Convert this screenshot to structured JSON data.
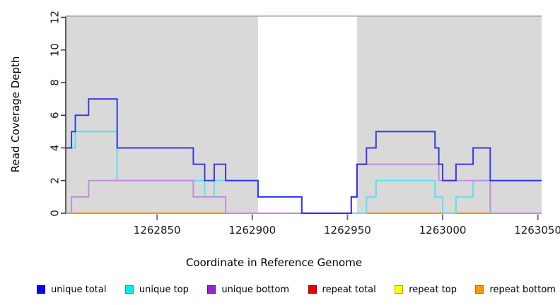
{
  "chart_data": {
    "type": "line",
    "subtype": "step-coverage-plot",
    "title": "",
    "xlabel": "Coordinate in Reference Genome",
    "ylabel": "Read Coverage Depth",
    "x_domain": [
      1262802,
      1263052
    ],
    "y_domain": [
      0,
      12
    ],
    "x_ticks": [
      1262850,
      1262900,
      1262950,
      1263000,
      1263050
    ],
    "y_ticks": [
      0,
      2,
      4,
      6,
      8,
      10,
      12
    ],
    "grid": false,
    "background_color": "#ffffff",
    "shaded_region_color": "#d9d9d9",
    "shaded_region_top_border_color": "#999999",
    "shaded_regions": [
      {
        "from": 1262802,
        "to": 1262903
      },
      {
        "from": 1262955,
        "to": 1263052
      }
    ],
    "legend_position": "bottom",
    "series": [
      {
        "name": "repeat total",
        "line_color": "#e00000",
        "legend_fill": "#ee0000",
        "legend_border": "#990000",
        "points": [
          [
            1262802,
            0
          ]
        ]
      },
      {
        "name": "repeat top",
        "line_color": "#ffe800",
        "legend_fill": "#ffff00",
        "legend_border": "#b8a800",
        "points": [
          [
            1262802,
            0
          ]
        ]
      },
      {
        "name": "repeat bottom",
        "line_color": "#ff9100",
        "legend_fill": "#ff9900",
        "legend_border": "#b86e00",
        "points": [
          [
            1262802,
            0
          ]
        ]
      },
      {
        "name": "unique top",
        "line_color": "#5fe0ec",
        "legend_fill": "#00eeee",
        "legend_border": "#00a8b4",
        "points": [
          [
            1262802,
            4
          ],
          [
            1262807,
            5
          ],
          [
            1262829,
            2
          ],
          [
            1262875,
            1
          ],
          [
            1262880,
            2
          ],
          [
            1262903,
            1
          ],
          [
            1262926,
            0
          ],
          [
            1262960,
            1
          ],
          [
            1262965,
            2
          ],
          [
            1262996,
            1
          ],
          [
            1263000,
            0
          ],
          [
            1263007,
            1
          ],
          [
            1263016,
            2
          ]
        ]
      },
      {
        "name": "unique bottom",
        "line_color": "#c18fd9",
        "legend_fill": "#9922cc",
        "legend_border": "#5e0c96",
        "points": [
          [
            1262802,
            0
          ],
          [
            1262805,
            1
          ],
          [
            1262814,
            2
          ],
          [
            1262869,
            1
          ],
          [
            1262886,
            0
          ],
          [
            1262952,
            1
          ],
          [
            1262955,
            3
          ],
          [
            1262998,
            2
          ],
          [
            1263025,
            0
          ]
        ]
      },
      {
        "name": "unique total",
        "line_color": "rgba(28,28,230,0.84)",
        "legend_fill": "#0000ee",
        "legend_border": "#000099",
        "points": [
          [
            1262802,
            4
          ],
          [
            1262805,
            5
          ],
          [
            1262807,
            6
          ],
          [
            1262814,
            7
          ],
          [
            1262829,
            4
          ],
          [
            1262869,
            3
          ],
          [
            1262875,
            2
          ],
          [
            1262880,
            3
          ],
          [
            1262886,
            2
          ],
          [
            1262903,
            1
          ],
          [
            1262926,
            0
          ],
          [
            1262952,
            1
          ],
          [
            1262955,
            3
          ],
          [
            1262960,
            4
          ],
          [
            1262965,
            5
          ],
          [
            1262996,
            4
          ],
          [
            1262998,
            3
          ],
          [
            1263000,
            2
          ],
          [
            1263007,
            3
          ],
          [
            1263016,
            4
          ],
          [
            1263025,
            2
          ]
        ]
      }
    ],
    "legend_order": [
      "unique total",
      "unique top",
      "unique bottom",
      "repeat total",
      "repeat top",
      "repeat bottom"
    ]
  }
}
